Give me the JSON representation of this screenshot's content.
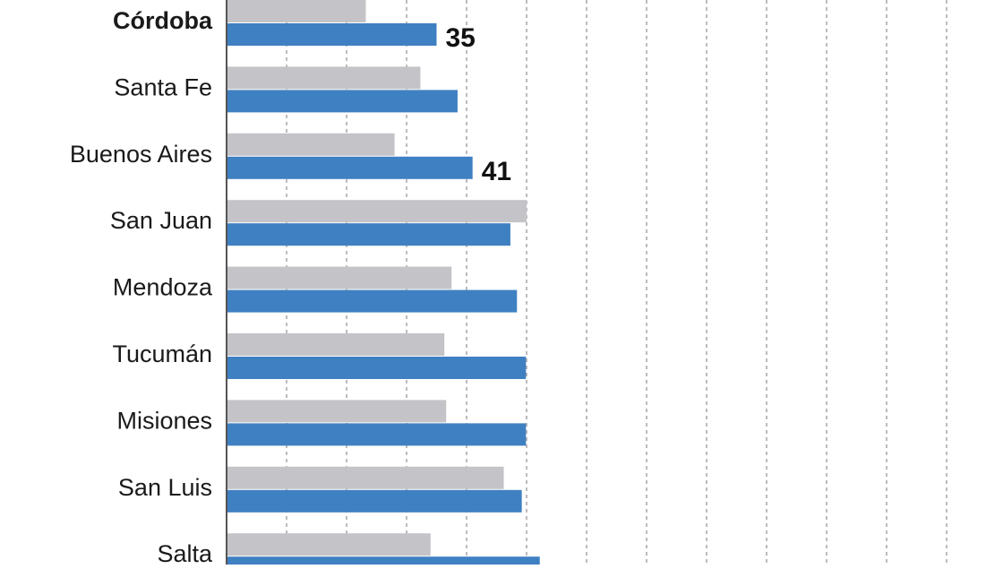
{
  "chart_data": {
    "type": "bar",
    "orientation": "horizontal",
    "categories": [
      "Córdoba",
      "Santa Fe",
      "Buenos Aires",
      "San Juan",
      "Mendoza",
      "Tucumán",
      "Misiones",
      "San Luis",
      "Salta"
    ],
    "highlight_category": "Córdoba",
    "series": [
      {
        "values": [
          23.2,
          32.3,
          28.0,
          50.0,
          37.5,
          36.3,
          36.6,
          46.2,
          34.0
        ]
      },
      {
        "values": [
          35,
          38.5,
          41,
          47.3,
          48.4,
          49.9,
          49.9,
          49.2,
          52.2
        ]
      }
    ],
    "data_labels": [
      {
        "category": "Córdoba",
        "text": "35"
      },
      {
        "category": "Buenos Aires",
        "text": "41"
      }
    ],
    "xlim": [
      0,
      127
    ],
    "grid": true,
    "colors": {
      "previous": "#c4c4c8",
      "current": "#3f80c2",
      "axis": "#555555",
      "grid": "#8f8f8f"
    }
  }
}
